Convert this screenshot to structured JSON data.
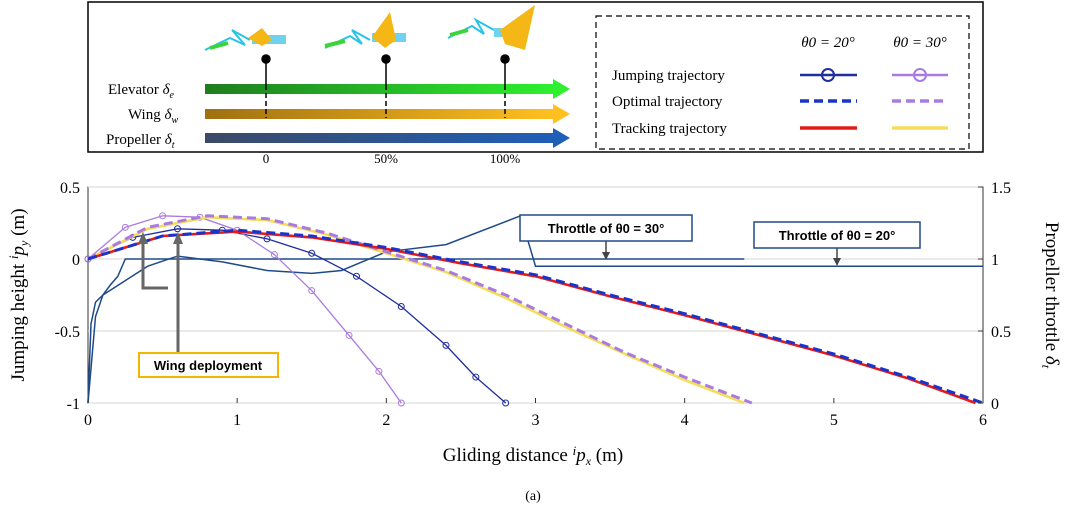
{
  "panel_label": "(a)",
  "top_box": {
    "rows": [
      {
        "label": "Elevator",
        "symbol": "δ",
        "sub": "e",
        "color_from": "#1e7d1e",
        "color_to": "#2ef02e"
      },
      {
        "label": "Wing",
        "symbol": "δ",
        "sub": "w",
        "color_from": "#a07010",
        "color_to": "#ffc020"
      },
      {
        "label": "Propeller",
        "symbol": "δ",
        "sub": "t",
        "color_from": "#3c4a66",
        "color_to": "#1f5fb8"
      }
    ],
    "ticks": [
      "0",
      "50%",
      "100%"
    ]
  },
  "legend": {
    "col1": "θ0 = 20°",
    "col2": "θ0 = 30°",
    "rows": [
      "Jumping trajectory",
      "Optimal trajectory",
      "Tracking trajectory"
    ]
  },
  "annotations": {
    "throttle30": "Throttle of θ0 = 30°",
    "throttle20": "Throttle of θ0 = 20°",
    "wing": "Wing deployment"
  },
  "chart_data": {
    "type": "line",
    "xlabel": "Gliding distance ipx (m)",
    "ylabel": "Jumping height ipy (m)",
    "y2label": "Propeller throttle δt",
    "xlim": [
      0,
      6
    ],
    "ylim": [
      -1,
      0.5
    ],
    "y2lim": [
      0,
      1.5
    ],
    "xticks": [
      "0",
      "1",
      "2",
      "3",
      "4",
      "5",
      "6"
    ],
    "yticks": [
      "-1",
      "-0.5",
      "0",
      "0.5"
    ],
    "y2ticks": [
      "0",
      "0.5",
      "1",
      "1.5"
    ],
    "grid": true,
    "colors": {
      "blue": "#1f2f9e",
      "dblue": "#1a33cc",
      "violet": "#a97be0",
      "red": "#e31b1b",
      "yellow": "#f5dc5a",
      "throttle": "#1f4a8a"
    },
    "series": [
      {
        "name": "Jumping trajectory θ0 = 20°",
        "x": [
          0,
          0.3,
          0.6,
          0.9,
          1.2,
          1.5,
          1.8,
          2.1,
          2.4,
          2.6,
          2.8
        ],
        "y": [
          0,
          0.15,
          0.21,
          0.2,
          0.14,
          0.04,
          -0.12,
          -0.33,
          -0.6,
          -0.82,
          -1.0
        ]
      },
      {
        "name": "Jumping trajectory θ0 = 30°",
        "x": [
          0,
          0.25,
          0.5,
          0.75,
          1.0,
          1.25,
          1.5,
          1.75,
          1.95,
          2.1
        ],
        "y": [
          0,
          0.22,
          0.3,
          0.29,
          0.2,
          0.03,
          -0.22,
          -0.53,
          -0.78,
          -1.0
        ]
      },
      {
        "name": "Optimal trajectory θ0 = 20°",
        "x": [
          0,
          0.5,
          1,
          1.5,
          2,
          2.5,
          3,
          3.5,
          4,
          4.5,
          5,
          5.5,
          6
        ],
        "y": [
          0,
          0.16,
          0.2,
          0.16,
          0.08,
          -0.02,
          -0.11,
          -0.25,
          -0.38,
          -0.52,
          -0.66,
          -0.82,
          -1.0
        ]
      },
      {
        "name": "Optimal trajectory θ0 = 30°",
        "x": [
          0,
          0.4,
          0.8,
          1.2,
          1.6,
          2,
          2.4,
          2.8,
          3.2,
          3.6,
          4,
          4.45
        ],
        "y": [
          0,
          0.22,
          0.3,
          0.28,
          0.18,
          0.05,
          -0.08,
          -0.25,
          -0.45,
          -0.65,
          -0.82,
          -1.0
        ]
      },
      {
        "name": "Tracking trajectory θ0 = 20°",
        "x": [
          0,
          0.5,
          1,
          1.5,
          2,
          2.5,
          3,
          3.5,
          4,
          4.5,
          5,
          5.5,
          5.95
        ],
        "y": [
          0,
          0.16,
          0.19,
          0.15,
          0.07,
          -0.03,
          -0.12,
          -0.26,
          -0.39,
          -0.53,
          -0.67,
          -0.83,
          -1.0
        ]
      },
      {
        "name": "Tracking trajectory θ0 = 30°",
        "x": [
          0,
          0.4,
          0.8,
          1.2,
          1.6,
          2,
          2.4,
          2.8,
          3.2,
          3.6,
          4,
          4.4
        ],
        "y": [
          0,
          0.21,
          0.29,
          0.27,
          0.17,
          0.04,
          -0.09,
          -0.27,
          -0.47,
          -0.66,
          -0.84,
          -1.0
        ]
      },
      {
        "name": "Throttle θ0 = 20°",
        "x": [
          0,
          0.05,
          0.1,
          0.25,
          0.4,
          0.6,
          0.9,
          1.2,
          1.5,
          1.7,
          2.0,
          2.4,
          2.9,
          3.0,
          4.5,
          6
        ],
        "y": [
          0,
          0.6,
          0.75,
          0.85,
          0.95,
          1.02,
          0.98,
          0.92,
          0.9,
          0.92,
          1.05,
          1.1,
          1.3,
          0.95,
          0.95,
          0.95
        ]
      },
      {
        "name": "Throttle θ0 = 30°",
        "x": [
          0,
          0.02,
          0.05,
          0.1,
          0.15,
          0.2,
          0.25,
          0.35,
          4.4
        ],
        "y": [
          0,
          0.55,
          0.7,
          0.75,
          0.82,
          0.88,
          1.0,
          1.0,
          1.0
        ]
      }
    ]
  }
}
